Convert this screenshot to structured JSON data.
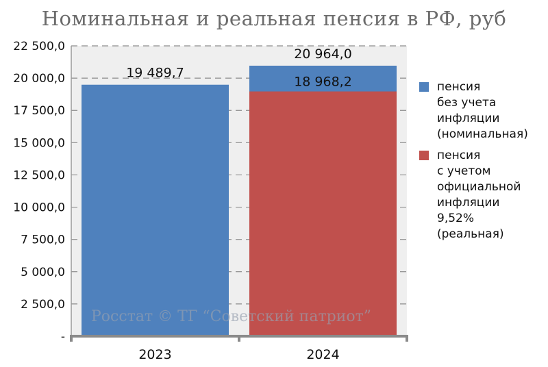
{
  "title": "Номинальная и реальная пенсия в РФ, руб",
  "watermark": "Росстат © ТГ “Советский патриот”",
  "chart_data": {
    "type": "bar",
    "categories": [
      "2023",
      "2024"
    ],
    "ylim": [
      0,
      22500
    ],
    "yticks": [
      "-",
      "2 500,0",
      "5 000,0",
      "7 500,0",
      "10 000,0",
      "12 500,0",
      "15 000,0",
      "17 500,0",
      "20 000,0",
      "22 500,0"
    ],
    "ytick_values": [
      0,
      2500,
      5000,
      7500,
      10000,
      12500,
      15000,
      17500,
      20000,
      22500
    ],
    "series": [
      {
        "name": "пенсия\nбез учета\nинфляции\n(номинальная)",
        "values": [
          19489.7,
          20964.0
        ],
        "labels": [
          "19 489,7",
          "20 964,0"
        ],
        "color": "#4f81bd"
      },
      {
        "name": "пенсия\nс учетом\nофициальной\nинфляции\n9,52%\n(реальная)",
        "values": [
          null,
          18968.2
        ],
        "labels": [
          "",
          "18 968,2"
        ],
        "color": "#c0504d"
      }
    ],
    "grid": "horizontal-dashed",
    "legend": "right",
    "plot_background": "#efefef"
  }
}
